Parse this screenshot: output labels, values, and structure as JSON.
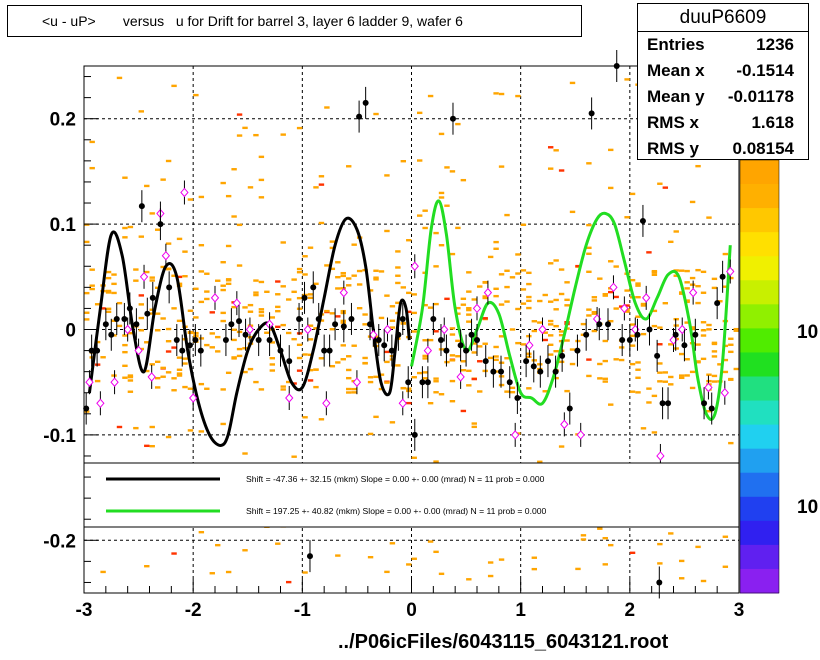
{
  "title": "<u - uP>       versus   u for Drift for barrel 3, layer 6 ladder 9, wafer 6",
  "footer": "../P06icFiles/6043115_6043121.root",
  "stats": {
    "name": "duuP6609",
    "rows": [
      {
        "label": "Entries",
        "value": "1236"
      },
      {
        "label": "Mean x",
        "value": "-0.1514"
      },
      {
        "label": "Mean y",
        "value": "-0.01178"
      },
      {
        "label": "RMS x",
        "value": "1.618"
      },
      {
        "label": "RMS y",
        "value": "0.08154"
      }
    ]
  },
  "legend": {
    "entries": [
      {
        "text": "Shift =   -47.36 +- 32.15 (mkm) Slope =    0.00 +- 0.00 (mrad)  N = 11 prob = 0.000",
        "color": "#000000"
      },
      {
        "text": "Shift =   197.25 +- 40.82 (mkm) Slope =    0.00 +- 0.00 (mrad)  N = 11 prob = 0.000",
        "color": "#22dd22"
      }
    ]
  },
  "colorbar": {
    "labels": [
      "10",
      "10"
    ],
    "colors": [
      "#ffa500",
      "#ffb000",
      "#ffc800",
      "#ffe000",
      "#f0f000",
      "#c8f000",
      "#90f000",
      "#50ec00",
      "#20e020",
      "#20e080",
      "#20e0c0",
      "#20d0f0",
      "#20a0f0",
      "#2070f0",
      "#2040f0",
      "#3020f0",
      "#6020f0",
      "#8a20f0"
    ]
  },
  "chart_data": {
    "type": "scatter",
    "title": "<u - uP>       versus   u for Drift for barrel 3, layer 6 ladder 9, wafer 6",
    "xlim": [
      -3,
      3
    ],
    "ylim": [
      -0.25,
      0.25
    ],
    "x_ticks": [
      -3,
      -2,
      -1,
      0,
      1,
      2,
      3
    ],
    "y_ticks": [
      -0.2,
      -0.1,
      0,
      0.1,
      0.2
    ],
    "y_tick_labels": [
      "-0.2",
      "-0.1",
      "0",
      "0.1",
      "0.2"
    ],
    "grid": true,
    "profile_black": [
      {
        "x": -2.98,
        "y": -0.075
      },
      {
        "x": -2.93,
        "y": -0.02
      },
      {
        "x": -2.88,
        "y": -0.02
      },
      {
        "x": -2.8,
        "y": 0.005
      },
      {
        "x": -2.75,
        "y": -0.005
      },
      {
        "x": -2.7,
        "y": 0.01
      },
      {
        "x": -2.63,
        "y": 0.01
      },
      {
        "x": -2.58,
        "y": 0.02
      },
      {
        "x": -2.52,
        "y": 0.005
      },
      {
        "x": -2.47,
        "y": 0.117
      },
      {
        "x": -2.42,
        "y": 0.015
      },
      {
        "x": -2.37,
        "y": 0.03
      },
      {
        "x": -2.3,
        "y": 0.1
      },
      {
        "x": -2.22,
        "y": 0.04
      },
      {
        "x": -2.15,
        "y": -0.01
      },
      {
        "x": -2.1,
        "y": -0.02
      },
      {
        "x": -2.03,
        "y": -0.015
      },
      {
        "x": -1.98,
        "y": -0.01
      },
      {
        "x": -1.93,
        "y": -0.02
      },
      {
        "x": -1.7,
        "y": -0.01
      },
      {
        "x": -1.65,
        "y": 0.005
      },
      {
        "x": -1.58,
        "y": 0.008
      },
      {
        "x": -1.52,
        "y": -0.005
      },
      {
        "x": -1.4,
        "y": -0.01
      },
      {
        "x": -1.3,
        "y": -0.01
      },
      {
        "x": -1.2,
        "y": -0.02
      },
      {
        "x": -1.12,
        "y": -0.03
      },
      {
        "x": -1.03,
        "y": 0.01
      },
      {
        "x": -0.98,
        "y": 0.03
      },
      {
        "x": -0.9,
        "y": 0.04
      },
      {
        "x": -0.85,
        "y": 0.01
      },
      {
        "x": -0.8,
        "y": -0.02
      },
      {
        "x": -0.75,
        "y": -0.02
      },
      {
        "x": -0.7,
        "y": 0.005
      },
      {
        "x": -0.62,
        "y": 0.003
      },
      {
        "x": -0.55,
        "y": 0.01
      },
      {
        "x": -0.48,
        "y": 0.202
      },
      {
        "x": -0.42,
        "y": 0.215
      },
      {
        "x": -0.38,
        "y": 0.005
      },
      {
        "x": -0.3,
        "y": -0.01
      },
      {
        "x": -0.25,
        "y": -0.015
      },
      {
        "x": -0.18,
        "y": -0.02
      },
      {
        "x": -0.12,
        "y": -0.005
      },
      {
        "x": -0.08,
        "y": 0.01
      },
      {
        "x": -0.03,
        "y": -0.05
      },
      {
        "x": 0.03,
        "y": -0.1
      },
      {
        "x": 0.1,
        "y": -0.05
      },
      {
        "x": 0.15,
        "y": -0.05
      },
      {
        "x": 0.2,
        "y": 0.01
      },
      {
        "x": 0.27,
        "y": -0.01
      },
      {
        "x": 0.32,
        "y": -0.02
      },
      {
        "x": 0.38,
        "y": 0.2
      },
      {
        "x": 0.45,
        "y": -0.015
      },
      {
        "x": 0.5,
        "y": -0.02
      },
      {
        "x": 0.55,
        "y": -0.005
      },
      {
        "x": 0.6,
        "y": -0.01
      },
      {
        "x": 0.68,
        "y": -0.03
      },
      {
        "x": 0.75,
        "y": -0.04
      },
      {
        "x": 0.82,
        "y": -0.04
      },
      {
        "x": 0.9,
        "y": -0.05
      },
      {
        "x": 0.97,
        "y": -0.065
      },
      {
        "x": 1.05,
        "y": -0.03
      },
      {
        "x": 1.12,
        "y": -0.035
      },
      {
        "x": 1.18,
        "y": -0.04
      },
      {
        "x": 1.25,
        "y": -0.03
      },
      {
        "x": 1.32,
        "y": -0.04
      },
      {
        "x": 1.38,
        "y": -0.025
      },
      {
        "x": 1.45,
        "y": -0.075
      },
      {
        "x": 1.52,
        "y": -0.02
      },
      {
        "x": 1.6,
        "y": -0.005
      },
      {
        "x": 1.65,
        "y": 0.205
      },
      {
        "x": 1.72,
        "y": 0.005
      },
      {
        "x": 1.8,
        "y": 0.005
      },
      {
        "x": 1.88,
        "y": 0.25
      },
      {
        "x": 1.93,
        "y": -0.01
      },
      {
        "x": 2.0,
        "y": -0.01
      },
      {
        "x": 2.07,
        "y": -0.005
      },
      {
        "x": 2.12,
        "y": 0.103
      },
      {
        "x": 2.18,
        "y": 0.0
      },
      {
        "x": 2.25,
        "y": -0.025
      },
      {
        "x": 2.3,
        "y": -0.07
      },
      {
        "x": 2.35,
        "y": -0.07
      },
      {
        "x": 2.42,
        "y": -0.005
      },
      {
        "x": 2.5,
        "y": -0.015
      },
      {
        "x": 2.55,
        "y": 0.19
      },
      {
        "x": 2.6,
        "y": -0.005
      },
      {
        "x": 2.68,
        "y": -0.07
      },
      {
        "x": 2.75,
        "y": -0.075
      },
      {
        "x": 2.8,
        "y": 0.025
      },
      {
        "x": 2.85,
        "y": 0.05
      },
      {
        "x": -0.93,
        "y": -0.215
      },
      {
        "x": 2.27,
        "y": -0.24
      }
    ],
    "profile_magenta": [
      {
        "x": -2.95,
        "y": -0.05
      },
      {
        "x": -2.85,
        "y": -0.07
      },
      {
        "x": -2.72,
        "y": -0.05
      },
      {
        "x": -2.6,
        "y": 0.0
      },
      {
        "x": -2.5,
        "y": -0.02
      },
      {
        "x": -2.45,
        "y": 0.05
      },
      {
        "x": -2.38,
        "y": -0.045
      },
      {
        "x": -2.3,
        "y": 0.11
      },
      {
        "x": -2.25,
        "y": 0.07
      },
      {
        "x": -2.08,
        "y": 0.13
      },
      {
        "x": -2.0,
        "y": -0.065
      },
      {
        "x": -1.8,
        "y": 0.03
      },
      {
        "x": -1.6,
        "y": 0.025
      },
      {
        "x": -1.48,
        "y": 0.0
      },
      {
        "x": -1.3,
        "y": 0.005
      },
      {
        "x": -1.12,
        "y": -0.065
      },
      {
        "x": -0.95,
        "y": 0.0
      },
      {
        "x": -0.78,
        "y": -0.07
      },
      {
        "x": -0.62,
        "y": 0.035
      },
      {
        "x": -0.5,
        "y": -0.05
      },
      {
        "x": -0.35,
        "y": -0.005
      },
      {
        "x": -0.22,
        "y": 0.0
      },
      {
        "x": -0.08,
        "y": -0.07
      },
      {
        "x": 0.03,
        "y": 0.06
      },
      {
        "x": 0.15,
        "y": -0.02
      },
      {
        "x": 0.3,
        "y": 0.0
      },
      {
        "x": 0.45,
        "y": -0.045
      },
      {
        "x": 0.6,
        "y": 0.02
      },
      {
        "x": 0.7,
        "y": 0.035
      },
      {
        "x": 0.95,
        "y": -0.1
      },
      {
        "x": 1.08,
        "y": -0.015
      },
      {
        "x": 1.2,
        "y": 0.0
      },
      {
        "x": 1.4,
        "y": -0.09
      },
      {
        "x": 1.55,
        "y": -0.1
      },
      {
        "x": 1.7,
        "y": 0.01
      },
      {
        "x": 1.85,
        "y": 0.04
      },
      {
        "x": 1.95,
        "y": 0.02
      },
      {
        "x": 2.05,
        "y": 0.0
      },
      {
        "x": 2.15,
        "y": 0.03
      },
      {
        "x": 2.28,
        "y": -0.12
      },
      {
        "x": 2.4,
        "y": -0.01
      },
      {
        "x": 2.48,
        "y": 0.0
      },
      {
        "x": 2.58,
        "y": 0.035
      },
      {
        "x": 2.72,
        "y": -0.055
      },
      {
        "x": 2.87,
        "y": -0.06
      },
      {
        "x": 2.92,
        "y": 0.055
      }
    ],
    "series": [
      {
        "color": "#000000",
        "x": [
          -2.95,
          -2.85,
          -2.75,
          -2.65,
          -2.55,
          -2.45,
          -2.35,
          -2.25,
          -2.15,
          -2.05,
          -1.95,
          -1.85,
          -1.75,
          -1.68,
          -1.6,
          -1.5,
          -1.4,
          -1.3,
          -1.2,
          -1.1,
          -1.0,
          -0.9,
          -0.8,
          -0.7,
          -0.6,
          -0.5,
          -0.42,
          -0.35,
          -0.28,
          -0.2,
          -0.15,
          -0.1,
          -0.05,
          -0.02
        ],
        "y": [
          -0.06,
          0.02,
          0.09,
          0.07,
          0.0,
          -0.04,
          0.02,
          0.06,
          0.05,
          -0.02,
          -0.07,
          -0.1,
          -0.11,
          -0.1,
          -0.06,
          -0.02,
          0.0,
          0.005,
          -0.02,
          -0.05,
          -0.055,
          -0.02,
          0.03,
          0.08,
          0.105,
          0.095,
          0.06,
          0.0,
          -0.05,
          -0.06,
          -0.02,
          0.025,
          0.02,
          -0.01
        ]
      },
      {
        "color": "#22dd22",
        "x": [
          0.0,
          0.1,
          0.18,
          0.25,
          0.32,
          0.4,
          0.5,
          0.6,
          0.7,
          0.8,
          0.9,
          1.0,
          1.1,
          1.2,
          1.3,
          1.4,
          1.5,
          1.6,
          1.7,
          1.78,
          1.86,
          1.95,
          2.05,
          2.15,
          2.25,
          2.35,
          2.45,
          2.55,
          2.62,
          2.7,
          2.78,
          2.85,
          2.92
        ],
        "y": [
          -0.035,
          0.02,
          0.095,
          0.122,
          0.09,
          0.02,
          -0.02,
          0.0,
          0.025,
          0.015,
          -0.025,
          -0.06,
          -0.065,
          -0.07,
          -0.045,
          -0.005,
          0.04,
          0.08,
          0.105,
          0.11,
          0.1,
          0.065,
          0.025,
          0.01,
          0.03,
          0.052,
          0.05,
          0.005,
          -0.045,
          -0.08,
          -0.08,
          -0.03,
          0.08
        ]
      }
    ]
  }
}
